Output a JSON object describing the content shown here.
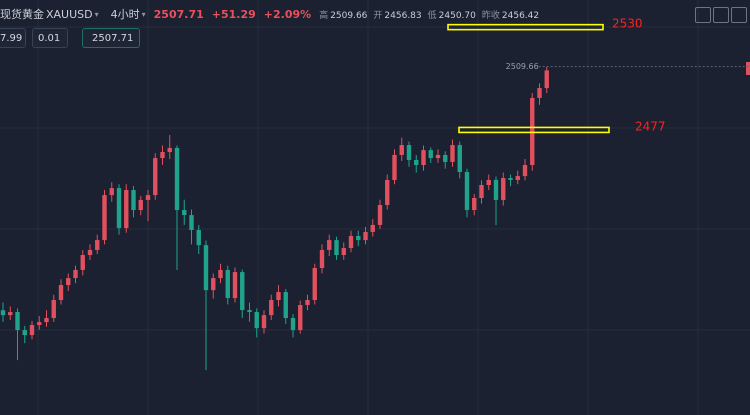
{
  "chart_data": {
    "type": "candlestick",
    "name": "现货黄金",
    "ticker": "XAUUSD",
    "interval": "4小时",
    "price": "2507.71",
    "change": "+51.29",
    "change_pct": "+2.09%",
    "stats": [
      {
        "label": "高",
        "value": "2509.66"
      },
      {
        "label": "开",
        "value": "2456.83"
      },
      {
        "label": "低",
        "value": "2450.70"
      },
      {
        "label": "昨收",
        "value": "2456.42"
      }
    ],
    "order_inputs": [
      "7.99",
      "0.01",
      "2507.71"
    ],
    "up_color": "#e0505e",
    "down_color": "#1fa38b",
    "ylim": [
      2330,
      2544
    ],
    "annotations": [
      {
        "value": 2530,
        "color": "#ffff00"
      },
      {
        "value": 2477,
        "color": "#ffff00"
      }
    ],
    "open": [
      2384.0,
      2381.5,
      2383.1,
      2373.8,
      2371.2,
      2376.4,
      2377.9,
      2380.0,
      2389.3,
      2397.0,
      2400.6,
      2404.8,
      2412.5,
      2415.1,
      2420.2,
      2443.4,
      2447.0,
      2426.4,
      2446.0,
      2435.7,
      2440.9,
      2443.4,
      2462.5,
      2465.6,
      2467.7,
      2435.7,
      2433.1,
      2425.4,
      2417.6,
      2394.4,
      2400.6,
      2404.8,
      2390.3,
      2403.7,
      2384.1,
      2383.1,
      2374.8,
      2381.5,
      2389.3,
      2393.4,
      2380.0,
      2373.8,
      2386.7,
      2389.3,
      2405.8,
      2415.1,
      2420.2,
      2412.5,
      2416.1,
      2422.3,
      2420.2,
      2424.4,
      2428.0,
      2438.3,
      2451.2,
      2464.1,
      2469.2,
      2461.5,
      2458.9,
      2466.6,
      2462.5,
      2464.1,
      2460.5,
      2469.2,
      2455.3,
      2435.7,
      2441.9,
      2448.6,
      2451.2,
      2440.9,
      2452.2,
      2451.2,
      2453.2,
      2458.9,
      2493.5,
      2498.6
    ],
    "high": [
      2388.0,
      2386.0,
      2385.0,
      2376.0,
      2378.5,
      2381.0,
      2384.0,
      2392.0,
      2400.0,
      2403.0,
      2407.0,
      2415.0,
      2418.0,
      2423.0,
      2446.0,
      2450.0,
      2449.0,
      2449.0,
      2448.0,
      2443.0,
      2446.0,
      2465.0,
      2469.0,
      2474.4,
      2469.0,
      2441.0,
      2436.0,
      2428.0,
      2420.0,
      2403.0,
      2408.0,
      2407.0,
      2406.0,
      2405.0,
      2388.0,
      2385.0,
      2384.0,
      2392.0,
      2397.0,
      2395.0,
      2382.0,
      2389.0,
      2392.0,
      2408.0,
      2418.0,
      2423.0,
      2422.0,
      2419.0,
      2425.0,
      2425.0,
      2427.0,
      2431.0,
      2441.0,
      2454.0,
      2467.0,
      2473.0,
      2471.0,
      2464.0,
      2469.0,
      2468.0,
      2467.0,
      2466.0,
      2472.0,
      2471.0,
      2457.0,
      2444.0,
      2451.0,
      2454.0,
      2453.0,
      2455.0,
      2454.0,
      2456.0,
      2462.0,
      2496.0,
      2501.0,
      2509.66
    ],
    "low": [
      2378.0,
      2379.0,
      2358.3,
      2367.0,
      2369.0,
      2374.0,
      2375.5,
      2378.0,
      2387.0,
      2394.0,
      2398.0,
      2402.0,
      2410.0,
      2413.0,
      2418.0,
      2440.0,
      2423.0,
      2424.0,
      2432.0,
      2433.0,
      2430.0,
      2441.0,
      2459.0,
      2462.0,
      2404.8,
      2428.0,
      2418.0,
      2413.0,
      2353.2,
      2390.0,
      2398.0,
      2387.0,
      2388.0,
      2380.0,
      2378.0,
      2370.0,
      2372.0,
      2379.0,
      2386.0,
      2377.0,
      2370.0,
      2372.0,
      2384.0,
      2387.0,
      2403.0,
      2412.0,
      2410.0,
      2410.0,
      2414.0,
      2417.0,
      2418.0,
      2422.0,
      2426.0,
      2436.0,
      2449.0,
      2461.0,
      2458.0,
      2455.0,
      2456.0,
      2460.0,
      2460.0,
      2457.0,
      2458.0,
      2452.0,
      2432.0,
      2433.0,
      2439.0,
      2446.0,
      2428.0,
      2438.0,
      2448.0,
      2449.0,
      2451.0,
      2456.0,
      2490.0,
      2496.0
    ],
    "close": [
      2381.5,
      2383.1,
      2373.8,
      2371.2,
      2376.4,
      2377.9,
      2380.0,
      2389.3,
      2397.0,
      2400.6,
      2404.8,
      2412.5,
      2415.1,
      2420.2,
      2443.4,
      2447.0,
      2426.4,
      2446.0,
      2435.7,
      2440.9,
      2443.4,
      2462.5,
      2465.6,
      2467.7,
      2435.7,
      2433.1,
      2425.4,
      2417.6,
      2394.4,
      2400.6,
      2404.8,
      2390.3,
      2403.7,
      2384.1,
      2383.1,
      2374.8,
      2381.5,
      2389.3,
      2393.4,
      2380.0,
      2373.8,
      2386.7,
      2389.3,
      2405.8,
      2415.1,
      2420.2,
      2412.5,
      2416.1,
      2422.3,
      2420.2,
      2424.4,
      2428.0,
      2438.3,
      2451.2,
      2464.1,
      2469.2,
      2461.5,
      2458.9,
      2466.6,
      2462.5,
      2464.1,
      2460.5,
      2469.2,
      2455.3,
      2435.7,
      2441.9,
      2448.6,
      2451.2,
      2440.9,
      2452.2,
      2451.2,
      2453.2,
      2458.9,
      2493.5,
      2498.6,
      2507.71
    ]
  }
}
